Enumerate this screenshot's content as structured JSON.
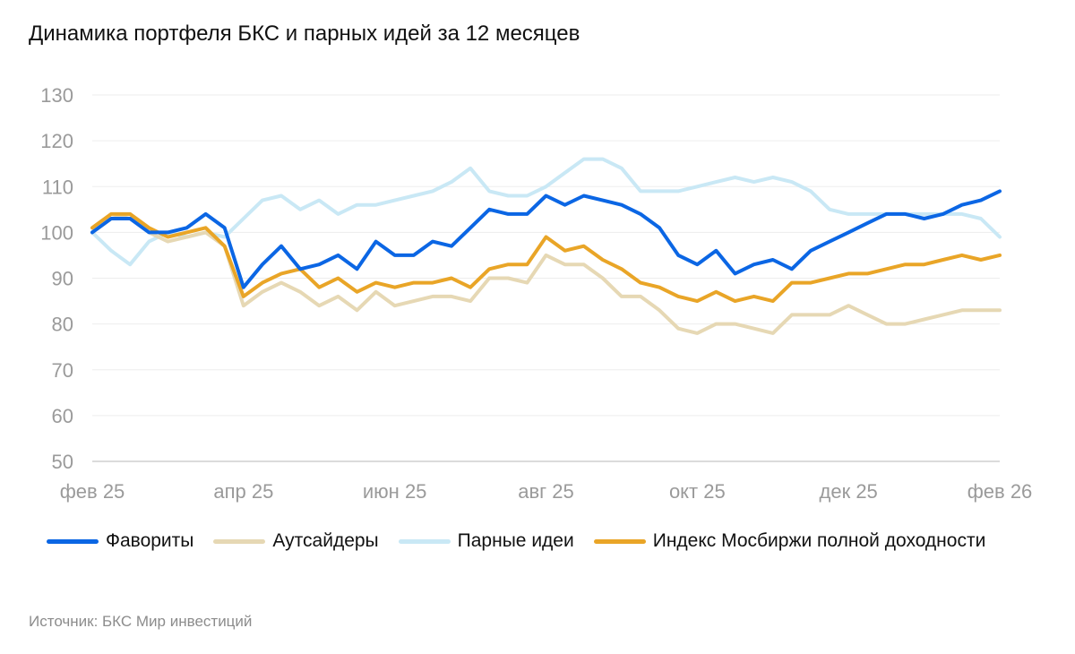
{
  "title": "Динамика портфеля БКС и парных идей за 12 месяцев",
  "source": "Источник: БКС Мир инвестиций",
  "chart_data": {
    "type": "line",
    "title": "Динамика портфеля БКС и парных идей за 12 месяцев",
    "xlabel": "",
    "ylabel": "",
    "ylim": [
      50,
      130
    ],
    "yticks": [
      50,
      60,
      70,
      80,
      90,
      100,
      110,
      120,
      130
    ],
    "xlim": [
      0,
      12
    ],
    "xticks": [
      {
        "x": 0,
        "label": "фев 25"
      },
      {
        "x": 2,
        "label": "апр 25"
      },
      {
        "x": 4,
        "label": "июн 25"
      },
      {
        "x": 6,
        "label": "авг 25"
      },
      {
        "x": 8,
        "label": "окт 25"
      },
      {
        "x": 10,
        "label": "дек 25"
      },
      {
        "x": 12,
        "label": "фев 26"
      }
    ],
    "grid": "horizontal",
    "legend_position": "bottom",
    "x": [
      0,
      0.25,
      0.5,
      0.75,
      1,
      1.25,
      1.5,
      1.75,
      2,
      2.25,
      2.5,
      2.75,
      3,
      3.25,
      3.5,
      3.75,
      4,
      4.25,
      4.5,
      4.75,
      5,
      5.25,
      5.5,
      5.75,
      6,
      6.25,
      6.5,
      6.75,
      7,
      7.25,
      7.5,
      7.75,
      8,
      8.25,
      8.5,
      8.75,
      9,
      9.25,
      9.5,
      9.75,
      10,
      10.25,
      10.5,
      10.75,
      11,
      11.25,
      11.5,
      11.75,
      12
    ],
    "series": [
      {
        "name": "Фавориты",
        "color": "#0b66e4",
        "values": [
          100,
          103,
          103,
          100,
          100,
          101,
          104,
          101,
          88,
          93,
          97,
          92,
          93,
          95,
          92,
          98,
          95,
          95,
          98,
          97,
          101,
          105,
          104,
          104,
          108,
          106,
          108,
          107,
          106,
          104,
          101,
          95,
          93,
          96,
          91,
          93,
          94,
          92,
          96,
          98,
          100,
          102,
          104,
          104,
          103,
          104,
          106,
          107,
          109
        ]
      },
      {
        "name": "Аутсайдеры",
        "color": "#e6d8b4",
        "values": [
          100,
          103,
          104,
          100,
          98,
          99,
          100,
          97,
          84,
          87,
          89,
          87,
          84,
          86,
          83,
          87,
          84,
          85,
          86,
          86,
          85,
          90,
          90,
          89,
          95,
          93,
          93,
          90,
          86,
          86,
          83,
          79,
          78,
          80,
          80,
          79,
          78,
          82,
          82,
          82,
          84,
          82,
          80,
          80,
          81,
          82,
          83,
          83,
          83
        ]
      },
      {
        "name": "Парные идеи",
        "color": "#c9e8f5",
        "values": [
          100,
          96,
          93,
          98,
          100,
          99,
          100,
          99,
          103,
          107,
          108,
          105,
          107,
          104,
          106,
          106,
          107,
          108,
          109,
          111,
          114,
          109,
          108,
          108,
          110,
          113,
          116,
          116,
          114,
          109,
          109,
          109,
          110,
          111,
          112,
          111,
          112,
          111,
          109,
          105,
          104,
          104,
          104,
          104,
          104,
          104,
          104,
          103,
          99
        ]
      },
      {
        "name": "Индекс Мосбиржи полной доходности",
        "color": "#e9a527",
        "values": [
          101,
          104,
          104,
          101,
          99,
          100,
          101,
          97,
          86,
          89,
          91,
          92,
          88,
          90,
          87,
          89,
          88,
          89,
          89,
          90,
          88,
          92,
          93,
          93,
          99,
          96,
          97,
          94,
          92,
          89,
          88,
          86,
          85,
          87,
          85,
          86,
          85,
          89,
          89,
          90,
          91,
          91,
          92,
          93,
          93,
          94,
          95,
          94,
          95
        ]
      }
    ]
  }
}
